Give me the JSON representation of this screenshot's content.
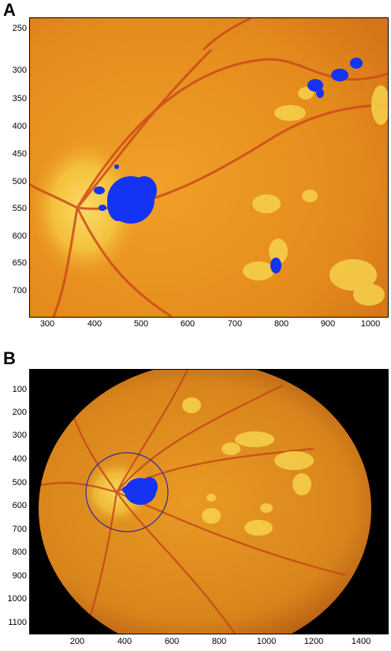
{
  "panels": [
    {
      "letter": "A",
      "y_ticks": [
        "250",
        "300",
        "350",
        "400",
        "450",
        "500",
        "550",
        "600",
        "650",
        "700"
      ],
      "x_ticks": [
        "300",
        "400",
        "500",
        "600",
        "700",
        "800",
        "900",
        "1000"
      ]
    },
    {
      "letter": "B",
      "y_ticks": [
        "100",
        "200",
        "300",
        "400",
        "500",
        "600",
        "700",
        "800",
        "900",
        "1000",
        "1100"
      ],
      "x_ticks": [
        "200",
        "400",
        "600",
        "800",
        "1000",
        "1200",
        "1400"
      ]
    }
  ],
  "colors": {
    "fundus_orange": "#e8901e",
    "fundus_dark": "#c9601a",
    "vessel": "#c8481c",
    "exudate": "#f4d04a",
    "optic_disc": "#f6c23e",
    "mask_blue": "#1030f0",
    "circle_outline": "#2a2a9a",
    "background_black": "#000000"
  }
}
